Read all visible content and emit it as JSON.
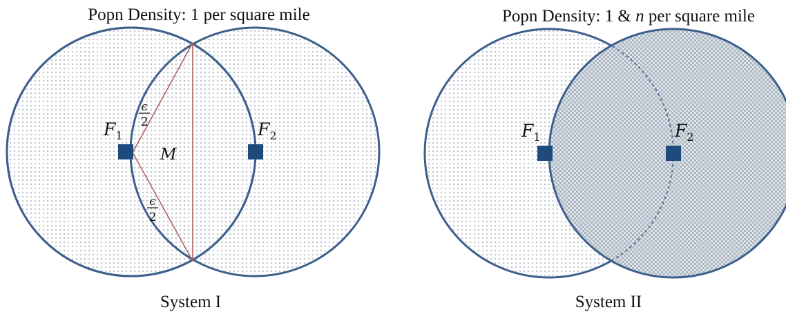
{
  "colors": {
    "outline": "#3d5f8c",
    "dots": "#c3c8cf",
    "check_a": "#a9b6c2",
    "check_b": "#dfe4e8",
    "square": "#1f4a7e",
    "chord": "#b05a5a",
    "text": "#111111"
  },
  "panels": [
    {
      "title": "Popn Density: 1 per square mile",
      "caption": "System I",
      "left_label": "F",
      "left_sub": "1",
      "right_label": "F",
      "right_sub": "2",
      "region_label": "M",
      "eps_top_num": "ϵ",
      "eps_top_den": "2",
      "eps_bot_num": "ϵ",
      "eps_bot_den": "2"
    },
    {
      "title_prefix": "Popn Density: 1 & ",
      "title_var": "n",
      "title_suffix": " per square mile",
      "caption": "System II",
      "left_label": "F",
      "left_sub": "1",
      "right_label": "F",
      "right_sub": "2"
    }
  ]
}
